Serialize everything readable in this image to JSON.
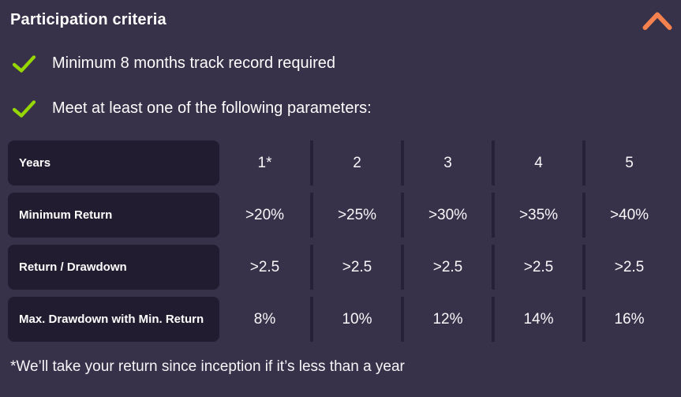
{
  "panel": {
    "title": "Participation criteria",
    "colors": {
      "background": "#373149",
      "row_background": "#211c30",
      "divider": "#262039",
      "check_green": "#97d700",
      "chevron_orange": "#f5824e"
    }
  },
  "criteria": [
    "Minimum 8 months track record required",
    "Meet at least one of the following parameters:"
  ],
  "table": {
    "rows": [
      {
        "label": "Years",
        "values": [
          "1*",
          "2",
          "3",
          "4",
          "5"
        ]
      },
      {
        "label": "Minimum Return",
        "values": [
          ">20%",
          ">25%",
          ">30%",
          ">35%",
          ">40%"
        ]
      },
      {
        "label": "Return / Drawdown",
        "values": [
          ">2.5",
          ">2.5",
          ">2.5",
          ">2.5",
          ">2.5"
        ]
      },
      {
        "label": "Max. Drawdown with Min. Return",
        "values": [
          "8%",
          "10%",
          "12%",
          "14%",
          "16%"
        ]
      }
    ]
  },
  "footnote": "*We’ll take your return since inception if it’s less than a year"
}
